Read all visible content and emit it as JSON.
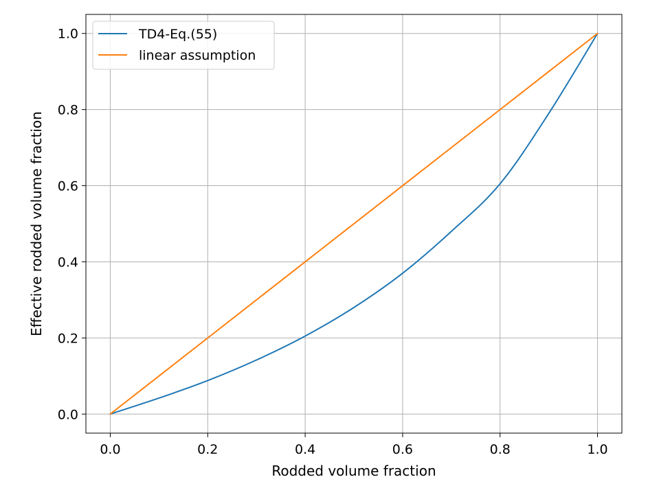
{
  "chart_data": {
    "type": "line",
    "title": "",
    "xlabel": "Rodded volume fraction",
    "ylabel": "Effective rodded volume fraction",
    "xlim": [
      -0.05,
      1.05
    ],
    "ylim": [
      -0.05,
      1.05
    ],
    "xticks": [
      0.0,
      0.2,
      0.4,
      0.6,
      0.8,
      1.0
    ],
    "yticks": [
      0.0,
      0.2,
      0.4,
      0.6,
      0.8,
      1.0
    ],
    "xtick_labels": [
      "0.0",
      "0.2",
      "0.4",
      "0.6",
      "0.8",
      "1.0"
    ],
    "ytick_labels": [
      "0.0",
      "0.2",
      "0.4",
      "0.6",
      "0.8",
      "1.0"
    ],
    "grid": true,
    "legend_position": "top-left",
    "series": [
      {
        "name": "TD4-Eq.(55)",
        "color": "#1f77b4",
        "x": [
          0.0,
          0.1,
          0.2,
          0.3,
          0.4,
          0.5,
          0.6,
          0.7,
          0.8,
          0.9,
          1.0
        ],
        "y": [
          0.0,
          0.042,
          0.088,
          0.142,
          0.205,
          0.28,
          0.37,
          0.48,
          0.605,
          0.79,
          1.0
        ]
      },
      {
        "name": "linear assumption",
        "color": "#ff7f0e",
        "x": [
          0.0,
          0.2,
          0.4,
          0.6,
          0.8,
          1.0
        ],
        "y": [
          0.0,
          0.2,
          0.4,
          0.6,
          0.8,
          1.0
        ]
      }
    ]
  }
}
